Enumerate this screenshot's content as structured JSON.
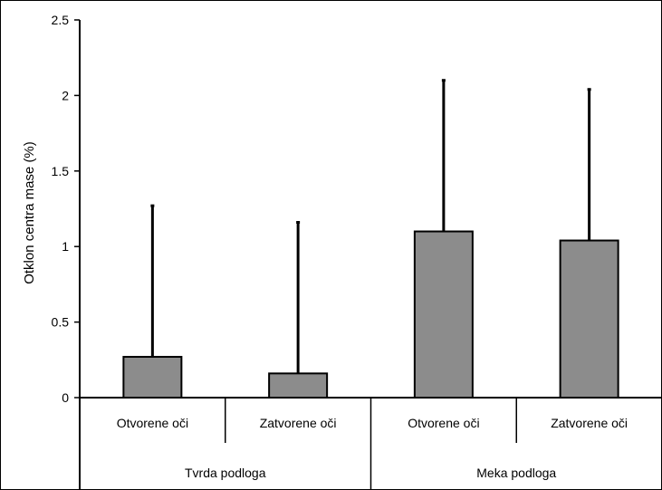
{
  "chart_data": {
    "type": "bar",
    "ylabel": "Otklon centra mase (%)",
    "ylim": [
      0,
      2.5
    ],
    "yticks": [
      0,
      0.5,
      1,
      1.5,
      2,
      2.5
    ],
    "ytick_labels": [
      "0",
      "0.5",
      "1",
      "1.5",
      "2",
      "2.5"
    ],
    "categories": [
      "Otvorene oči",
      "Zatvorene oči",
      "Otvorene oči",
      "Zatvorene oči"
    ],
    "groups": [
      {
        "label": "Tvrda podloga",
        "categories": [
          0,
          1
        ]
      },
      {
        "label": "Meka podloga",
        "categories": [
          2,
          3
        ]
      }
    ],
    "values": [
      0.27,
      0.16,
      1.1,
      1.04
    ],
    "error_upper": [
      1.27,
      1.16,
      2.1,
      2.04
    ],
    "bar_color": "#8c8c8c",
    "grid": false,
    "legend": "none"
  }
}
